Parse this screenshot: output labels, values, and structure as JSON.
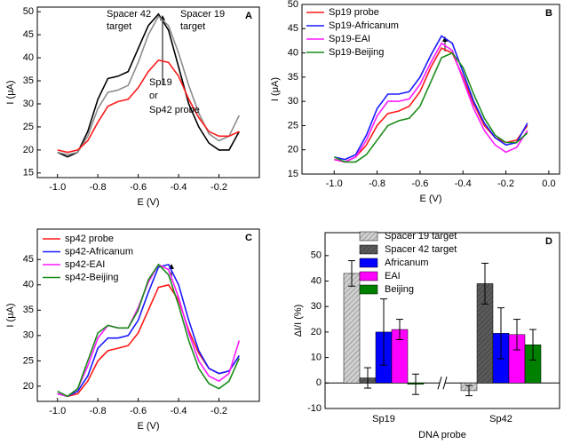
{
  "chart_data": [
    {
      "type": "line",
      "label": "A",
      "xlabel": "E (V)",
      "ylabel": "I (μA)",
      "xlim": [
        -1.1,
        0.0
      ],
      "ylim": [
        14,
        51
      ],
      "xticks": [
        {
          "value": -1,
          "label": "-1.0"
        },
        -0.8,
        -0.6,
        -0.4,
        -0.2
      ],
      "yticks": [
        15,
        20,
        25,
        30,
        35,
        40,
        45,
        50
      ],
      "x": [
        -1.0,
        -0.95,
        -0.9,
        -0.85,
        -0.8,
        -0.75,
        -0.7,
        -0.65,
        -0.6,
        -0.55,
        -0.5,
        -0.45,
        -0.4,
        -0.35,
        -0.3,
        -0.25,
        -0.2,
        -0.15,
        -0.1
      ],
      "series": [
        {
          "color": "#000000",
          "values": [
            19.5,
            18.5,
            19.5,
            24,
            31,
            35.5,
            36,
            37,
            42,
            47,
            49.5,
            46,
            38,
            30,
            25,
            21.5,
            20,
            20,
            24
          ]
        },
        {
          "color": "#8c8c8c",
          "values": [
            19.5,
            19,
            19.5,
            23,
            29,
            32.5,
            33,
            34,
            39,
            45,
            49,
            47,
            41,
            34,
            28,
            23.5,
            22,
            23,
            27.5
          ]
        },
        {
          "color": "#ff1a1a",
          "values": [
            20,
            19.5,
            20,
            22,
            26,
            29.5,
            30.5,
            31,
            33.5,
            37,
            39.5,
            39,
            36,
            31,
            27,
            24,
            23,
            23,
            24
          ]
        }
      ],
      "annotations": [
        {
          "text": "Spacer 42",
          "color": "#000000"
        },
        {
          "text": "target",
          "color": "#000000"
        },
        {
          "text": "Spacer 19",
          "color": "#8b3a4a"
        },
        {
          "text": "target",
          "color": "#8b3a4a"
        },
        {
          "text": "Sp19",
          "color": "#ff1a1a"
        },
        {
          "text": "or",
          "color": "#ff1a1a"
        },
        {
          "text": "Sp42 probe",
          "color": "#ff1a1a"
        }
      ]
    },
    {
      "type": "line",
      "label": "B",
      "xlabel": "E (V)",
      "ylabel": "I (μA)",
      "xlim": [
        -1.15,
        0.05
      ],
      "ylim": [
        15,
        50
      ],
      "xticks": [
        {
          "value": -1,
          "label": "-1.0"
        },
        -0.8,
        -0.6,
        -0.4,
        -0.2,
        {
          "value": 0,
          "label": "0.0"
        }
      ],
      "yticks": [
        15,
        20,
        25,
        30,
        35,
        40,
        45,
        50
      ],
      "x": [
        -1.0,
        -0.95,
        -0.9,
        -0.85,
        -0.8,
        -0.75,
        -0.7,
        -0.65,
        -0.6,
        -0.55,
        -0.5,
        -0.45,
        -0.4,
        -0.35,
        -0.3,
        -0.25,
        -0.2,
        -0.15,
        -0.1
      ],
      "series": [
        {
          "name": "Sp19 probe",
          "color": "#ff1a1a",
          "values": [
            18,
            17.5,
            18.5,
            21,
            25,
            27.5,
            28,
            29,
            32,
            37,
            41,
            40,
            35,
            29.5,
            25,
            22.5,
            21.5,
            22,
            25
          ]
        },
        {
          "name": "Sp19-Africanum",
          "color": "#1a1aff",
          "values": [
            18.5,
            18,
            19,
            23,
            28.5,
            31.5,
            31.5,
            32,
            35,
            39.5,
            43.5,
            42,
            36,
            30,
            25.5,
            22.5,
            21,
            21.5,
            25.5
          ]
        },
        {
          "name": "Sp19-EAI",
          "color": "#ff1aff",
          "values": [
            18,
            17.5,
            18.5,
            22,
            27,
            30,
            30,
            30.5,
            33.5,
            38,
            42,
            40.5,
            34.5,
            28.5,
            24,
            21,
            19.5,
            20.5,
            24
          ]
        },
        {
          "name": "Sp19-Beijing",
          "color": "#1a8c1a",
          "values": [
            18.5,
            17.5,
            17.5,
            19,
            22,
            25,
            26,
            26.5,
            29,
            34,
            39,
            40,
            37,
            31.5,
            26.5,
            23,
            21.5,
            21.5,
            23.5
          ]
        }
      ]
    },
    {
      "type": "line",
      "label": "C",
      "xlabel": "E (V)",
      "ylabel": "I (μA)",
      "xlim": [
        -1.1,
        0.0
      ],
      "ylim": [
        17,
        51
      ],
      "xticks": [
        {
          "value": -1,
          "label": "-1.0"
        },
        -0.8,
        -0.6,
        -0.4,
        -0.2
      ],
      "yticks": [
        20,
        25,
        30,
        35,
        40,
        45
      ],
      "x": [
        -1.0,
        -0.95,
        -0.9,
        -0.85,
        -0.8,
        -0.75,
        -0.7,
        -0.65,
        -0.6,
        -0.55,
        -0.5,
        -0.45,
        -0.4,
        -0.35,
        -0.3,
        -0.25,
        -0.2,
        -0.15,
        -0.1
      ],
      "series": [
        {
          "name": "sp42 probe",
          "color": "#ff1a1a",
          "values": [
            18.5,
            18,
            18.5,
            21,
            25,
            27,
            27.5,
            28,
            30.5,
            35,
            39.5,
            40,
            37,
            31,
            26.5,
            23.5,
            22.5,
            23,
            26
          ]
        },
        {
          "name": "sp42-Africanum",
          "color": "#1a1aff",
          "values": [
            18.5,
            18,
            19,
            22,
            27.5,
            29.5,
            29.5,
            30,
            33,
            38.5,
            43.5,
            44,
            40,
            33,
            27,
            23.5,
            22.5,
            23,
            26
          ]
        },
        {
          "name": "sp42-EAI",
          "color": "#ff1aff",
          "values": [
            18.5,
            18,
            19.5,
            24,
            29.5,
            32,
            31.5,
            31.5,
            35.5,
            40.5,
            44,
            43,
            37.5,
            30.5,
            25,
            22,
            21,
            22.5,
            29
          ]
        },
        {
          "name": "sp42-Beijing",
          "color": "#1a8c1a",
          "values": [
            19,
            18,
            19.5,
            25,
            30.5,
            32,
            31.5,
            31.5,
            35,
            41,
            44,
            42,
            36,
            29,
            23.5,
            20.5,
            19.5,
            21,
            25.5
          ]
        }
      ]
    },
    {
      "type": "bar",
      "label": "D",
      "xlabel": "DNA probe",
      "ylabel": "ΔI/I (%)",
      "ylim": [
        -10,
        59
      ],
      "yticks": [
        -10,
        0,
        10,
        20,
        30,
        40,
        50
      ],
      "categories": [
        "Sp19",
        "Sp42"
      ],
      "series": [
        {
          "name": "Spacer 19 target",
          "color": "#d0d0d0",
          "hatch": true,
          "values": [
            43,
            -3
          ],
          "errors": [
            5,
            2
          ]
        },
        {
          "name": "Spacer 42 target",
          "color": "#5a5a5a",
          "hatch": true,
          "values": [
            2,
            39
          ],
          "errors": [
            4,
            8
          ]
        },
        {
          "name": "Africanum",
          "color": "#0000ff",
          "values": [
            20,
            19.5
          ],
          "errors": [
            13,
            10
          ]
        },
        {
          "name": "EAI",
          "color": "#ff00ff",
          "values": [
            21,
            19
          ],
          "errors": [
            4,
            6
          ]
        },
        {
          "name": "Beijing",
          "color": "#008000",
          "values": [
            -0.5,
            15
          ],
          "errors": [
            4,
            6
          ]
        }
      ]
    }
  ]
}
